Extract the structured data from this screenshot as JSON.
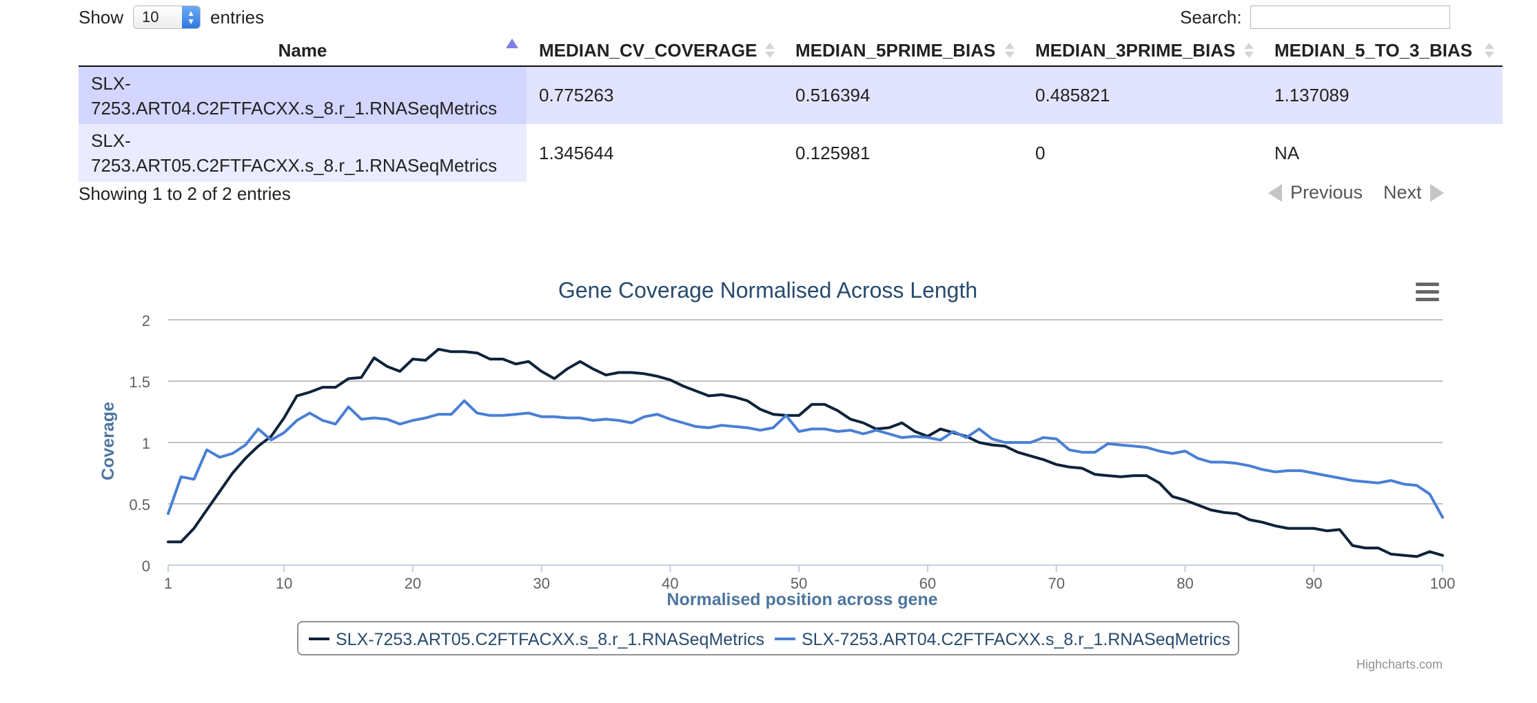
{
  "table_controls": {
    "show_label": "Show",
    "entries_label": "entries",
    "page_length": "10",
    "search_label": "Search:",
    "search_value": ""
  },
  "table": {
    "columns": [
      "Name",
      "MEDIAN_CV_COVERAGE",
      "MEDIAN_5PRIME_BIAS",
      "MEDIAN_3PRIME_BIAS",
      "MEDIAN_5_TO_3_BIAS"
    ],
    "rows": [
      {
        "name_line1": "SLX-",
        "name_line2": "7253.ART04.C2FTFACXX.s_8.r_1.RNASeqMetrics",
        "cv": "0.775263",
        "p5": "0.516394",
        "p3": "0.485821",
        "r53": "1.137089"
      },
      {
        "name_line1": "SLX-",
        "name_line2": "7253.ART05.C2FTFACXX.s_8.r_1.RNASeqMetrics",
        "cv": "1.345644",
        "p5": "0.125981",
        "p3": "0",
        "r53": "NA"
      }
    ],
    "info": "Showing 1 to 2 of 2 entries",
    "prev_label": "Previous",
    "next_label": "Next"
  },
  "chart_credit": "Highcharts.com",
  "colors": {
    "series_dark": "#0d233a",
    "series_blue": "#4a7fd4",
    "title": "#274b6d",
    "axis_label": "#4d759e",
    "grid": "#c0c0c0",
    "sort_active": "#7e80e4",
    "row_highlight": "#e2e4ff"
  },
  "chart_data": {
    "type": "line",
    "title": "Gene Coverage Normalised Across Length",
    "xlabel": "Normalised position across gene",
    "ylabel": "Coverage",
    "xlim": [
      1,
      100
    ],
    "ylim": [
      0,
      2
    ],
    "x_ticks": [
      1,
      10,
      20,
      30,
      40,
      50,
      60,
      70,
      80,
      90,
      100
    ],
    "y_ticks": [
      0,
      0.5,
      1,
      1.5,
      2
    ],
    "x_tick_labels": [
      "1",
      "10",
      "20",
      "30",
      "40",
      "50",
      "60",
      "70",
      "80",
      "90",
      "100"
    ],
    "y_tick_labels": [
      "0",
      "0.5",
      "1",
      "1.5",
      "2"
    ],
    "grid": true,
    "legend": "bottom-center",
    "x": [
      1,
      2,
      3,
      4,
      5,
      6,
      7,
      8,
      9,
      10,
      11,
      12,
      13,
      14,
      15,
      16,
      17,
      18,
      19,
      20,
      21,
      22,
      23,
      24,
      25,
      26,
      27,
      28,
      29,
      30,
      31,
      32,
      33,
      34,
      35,
      36,
      37,
      38,
      39,
      40,
      41,
      42,
      43,
      44,
      45,
      46,
      47,
      48,
      49,
      50,
      51,
      52,
      53,
      54,
      55,
      56,
      57,
      58,
      59,
      60,
      61,
      62,
      63,
      64,
      65,
      66,
      67,
      68,
      69,
      70,
      71,
      72,
      73,
      74,
      75,
      76,
      77,
      78,
      79,
      80,
      81,
      82,
      83,
      84,
      85,
      86,
      87,
      88,
      89,
      90,
      91,
      92,
      93,
      94,
      95,
      96,
      97,
      98,
      99,
      100
    ],
    "series": [
      {
        "name": "SLX-7253.ART05.C2FTFACXX.s_8.r_1.RNASeqMetrics",
        "values": [
          0.19,
          0.19,
          0.3,
          0.45,
          0.6,
          0.75,
          0.87,
          0.97,
          1.05,
          1.2,
          1.38,
          1.41,
          1.45,
          1.45,
          1.52,
          1.53,
          1.69,
          1.62,
          1.58,
          1.68,
          1.67,
          1.76,
          1.74,
          1.74,
          1.73,
          1.68,
          1.68,
          1.64,
          1.66,
          1.58,
          1.52,
          1.6,
          1.66,
          1.6,
          1.55,
          1.57,
          1.57,
          1.56,
          1.54,
          1.51,
          1.46,
          1.42,
          1.38,
          1.39,
          1.37,
          1.34,
          1.27,
          1.23,
          1.22,
          1.22,
          1.31,
          1.31,
          1.26,
          1.19,
          1.16,
          1.11,
          1.12,
          1.16,
          1.09,
          1.05,
          1.11,
          1.08,
          1.05,
          1.0,
          0.98,
          0.97,
          0.92,
          0.89,
          0.86,
          0.82,
          0.8,
          0.79,
          0.74,
          0.73,
          0.72,
          0.73,
          0.73,
          0.67,
          0.56,
          0.53,
          0.49,
          0.45,
          0.43,
          0.42,
          0.37,
          0.35,
          0.32,
          0.3,
          0.3,
          0.3,
          0.28,
          0.29,
          0.16,
          0.14,
          0.14,
          0.09,
          0.08,
          0.07,
          0.11,
          0.08
        ]
      },
      {
        "name": "SLX-7253.ART04.C2FTFACXX.s_8.r_1.RNASeqMetrics",
        "values": [
          0.42,
          0.72,
          0.7,
          0.94,
          0.88,
          0.91,
          0.98,
          1.11,
          1.02,
          1.08,
          1.18,
          1.24,
          1.18,
          1.15,
          1.29,
          1.19,
          1.2,
          1.19,
          1.15,
          1.18,
          1.2,
          1.23,
          1.23,
          1.34,
          1.24,
          1.22,
          1.22,
          1.23,
          1.24,
          1.21,
          1.21,
          1.2,
          1.2,
          1.18,
          1.19,
          1.18,
          1.16,
          1.21,
          1.23,
          1.19,
          1.16,
          1.13,
          1.12,
          1.14,
          1.13,
          1.12,
          1.1,
          1.12,
          1.22,
          1.09,
          1.11,
          1.11,
          1.09,
          1.1,
          1.07,
          1.1,
          1.07,
          1.04,
          1.05,
          1.04,
          1.02,
          1.09,
          1.04,
          1.11,
          1.03,
          1.0,
          1.0,
          1.0,
          1.04,
          1.03,
          0.94,
          0.92,
          0.92,
          0.99,
          0.98,
          0.97,
          0.96,
          0.93,
          0.91,
          0.93,
          0.87,
          0.84,
          0.84,
          0.83,
          0.81,
          0.78,
          0.76,
          0.77,
          0.77,
          0.75,
          0.73,
          0.71,
          0.69,
          0.68,
          0.67,
          0.69,
          0.66,
          0.65,
          0.58,
          0.39
        ]
      }
    ]
  }
}
